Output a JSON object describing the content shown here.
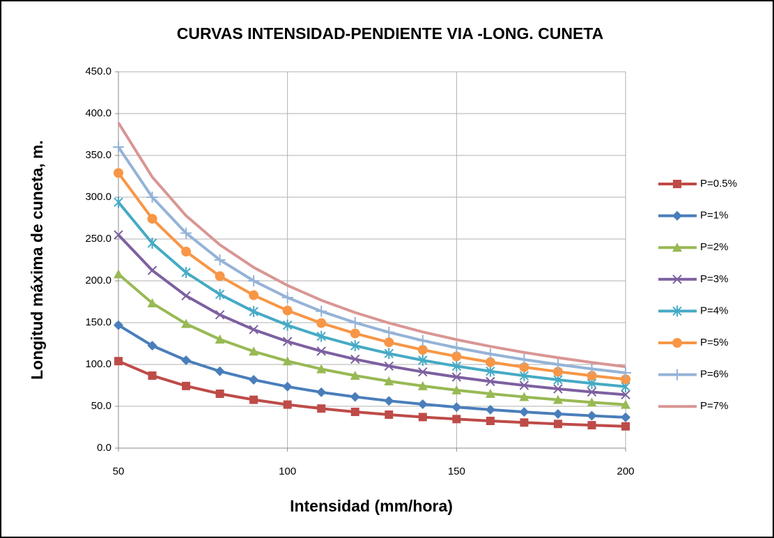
{
  "chart_data": {
    "type": "line",
    "title": "CURVAS  INTENSIDAD-PENDIENTE VIA -LONG. CUNETA",
    "x_label": "Intensidad (mm/hora)",
    "y_label": "Longitud máxima de cuneta, m.",
    "x": [
      50,
      60,
      70,
      80,
      90,
      100,
      110,
      120,
      130,
      140,
      150,
      160,
      170,
      180,
      190,
      200
    ],
    "xlim": [
      50,
      200
    ],
    "xticks": [
      50,
      100,
      150,
      200
    ],
    "ylim": [
      0,
      450
    ],
    "yticks": [
      {
        "value": 0,
        "label": "0.0"
      },
      {
        "value": 50,
        "label": "50.0"
      },
      {
        "value": 100,
        "label": "100.0"
      },
      {
        "value": 150,
        "label": "150.0"
      },
      {
        "value": 200,
        "label": "200.0"
      },
      {
        "value": 250,
        "label": "250.0"
      },
      {
        "value": 300,
        "label": "300.0"
      },
      {
        "value": 350,
        "label": "350.0"
      },
      {
        "value": 400,
        "label": "400.0"
      },
      {
        "value": 450,
        "label": "450.0"
      }
    ],
    "grid": true,
    "legend": "right",
    "series": [
      {
        "name": "P=0.5%",
        "color": "#be4b48",
        "marker": "square",
        "values": [
          104,
          86.7,
          74.3,
          65,
          57.8,
          52,
          47.3,
          43.3,
          40,
          37.1,
          34.7,
          32.5,
          30.6,
          28.9,
          27.4,
          26
        ]
      },
      {
        "name": "P=1%",
        "color": "#4a7ebb",
        "marker": "diamond",
        "values": [
          147,
          122.5,
          105,
          91.9,
          81.7,
          73.5,
          66.8,
          61.3,
          56.5,
          52.5,
          49,
          45.9,
          43.2,
          40.8,
          38.7,
          36.8
        ]
      },
      {
        "name": "P=2%",
        "color": "#98b954",
        "marker": "triangle",
        "values": [
          208,
          173.3,
          148.6,
          130,
          115.6,
          104,
          94.5,
          86.7,
          80,
          74.3,
          69.3,
          65,
          61.2,
          57.8,
          54.7,
          52
        ]
      },
      {
        "name": "P=3%",
        "color": "#7d60a0",
        "marker": "x",
        "values": [
          255,
          212.5,
          182.1,
          159.4,
          141.7,
          127.5,
          115.9,
          106.3,
          98.1,
          91.1,
          85,
          79.7,
          75,
          70.8,
          67.1,
          63.8
        ]
      },
      {
        "name": "P=4%",
        "color": "#46aac5",
        "marker": "star",
        "values": [
          294,
          245,
          210,
          183.8,
          163.3,
          147,
          133.6,
          122.5,
          113.1,
          105,
          98,
          91.9,
          86.5,
          81.7,
          77.4,
          73.5
        ]
      },
      {
        "name": "P=5%",
        "color": "#f79646",
        "marker": "circle",
        "values": [
          329,
          274.2,
          235,
          205.6,
          182.8,
          164.5,
          149.5,
          137.1,
          126.5,
          117.5,
          109.7,
          102.8,
          96.8,
          91.4,
          86.6,
          82.3
        ]
      },
      {
        "name": "P=6%",
        "color": "#95b3d7",
        "marker": "plus",
        "values": [
          360,
          300,
          257.1,
          225,
          200,
          180,
          163.6,
          150,
          138.5,
          128.6,
          120,
          112.5,
          105.9,
          100,
          94.7,
          90
        ]
      },
      {
        "name": "P=7%",
        "color": "#d99694",
        "marker": "none",
        "values": [
          389,
          324.2,
          277.9,
          243.1,
          216.1,
          194.5,
          176.8,
          162.1,
          149.6,
          138.9,
          129.7,
          121.6,
          114.4,
          108.1,
          102.4,
          97.3
        ]
      }
    ]
  }
}
